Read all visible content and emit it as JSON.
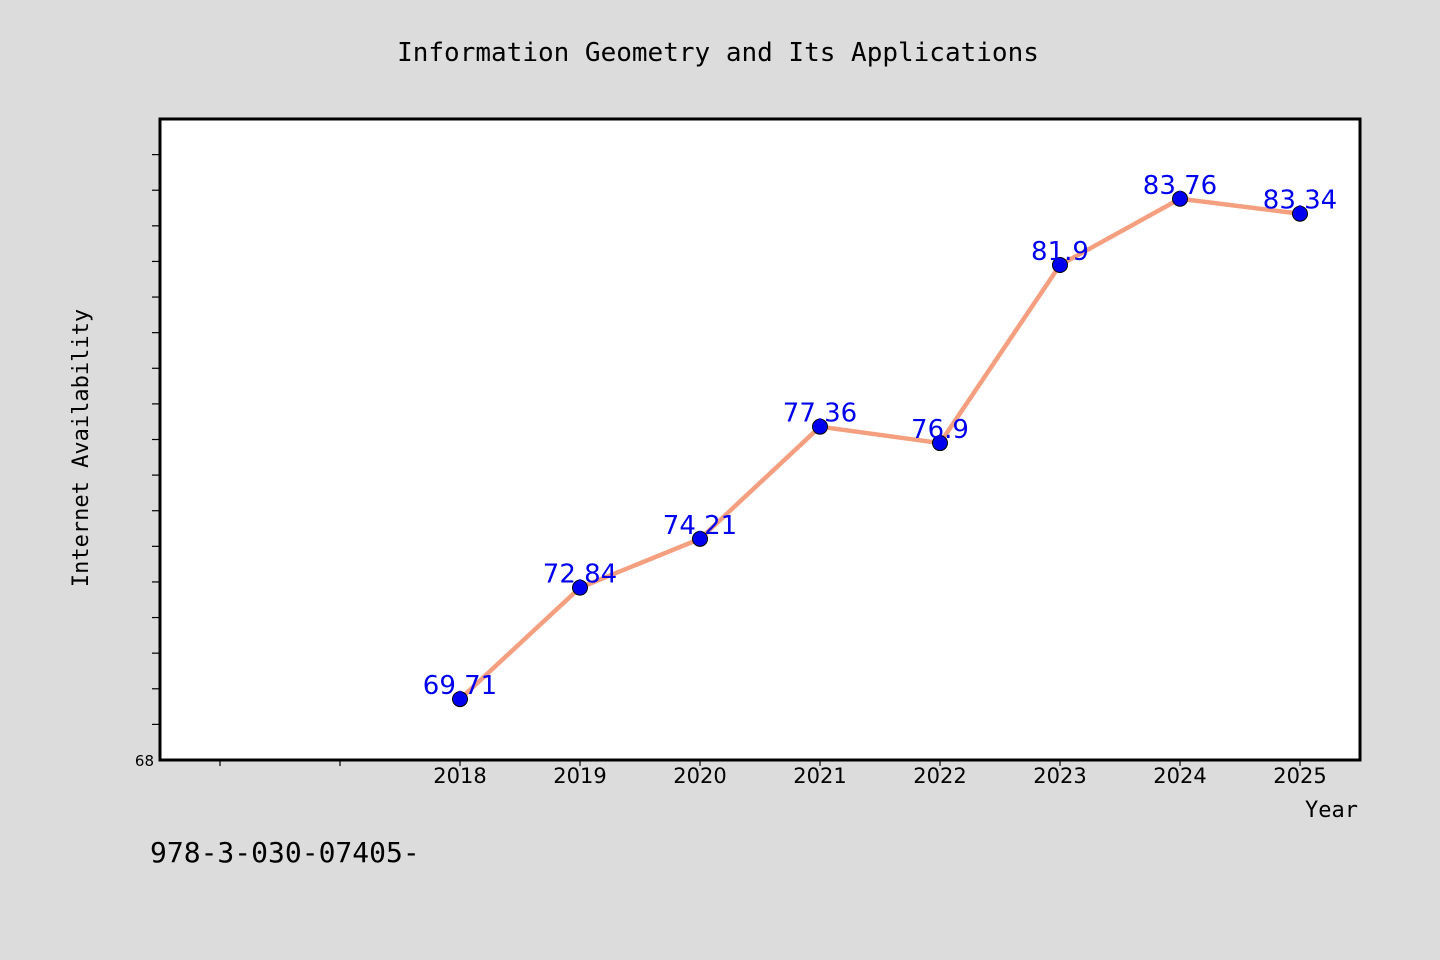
{
  "chart_data": {
    "type": "line",
    "title": "Information Geometry and Its Applications",
    "xlabel": "Year",
    "ylabel": "Internet Availability",
    "categories": [
      "2018",
      "2019",
      "2020",
      "2021",
      "2022",
      "2023",
      "2024",
      "2025"
    ],
    "series": [
      {
        "values": [
          69.71,
          72.84,
          74.21,
          77.36,
          76.9,
          81.9,
          83.76,
          83.34
        ],
        "labels": [
          "69.71",
          "72.84",
          "74.21",
          "77.36",
          "76.9",
          "81.9",
          "83.76",
          "83.34"
        ]
      }
    ],
    "ylim": [
      68,
      86
    ],
    "ytick_labels": [
      "68"
    ],
    "grid": false,
    "legend": "none",
    "colors": {
      "line": "#f4a080",
      "marker": "#0000ee",
      "data_label": "#0000ee",
      "plot_background": "#ffffff",
      "page_background": "#dcdcdc"
    }
  },
  "footer_text": "978-3-030-07405-"
}
